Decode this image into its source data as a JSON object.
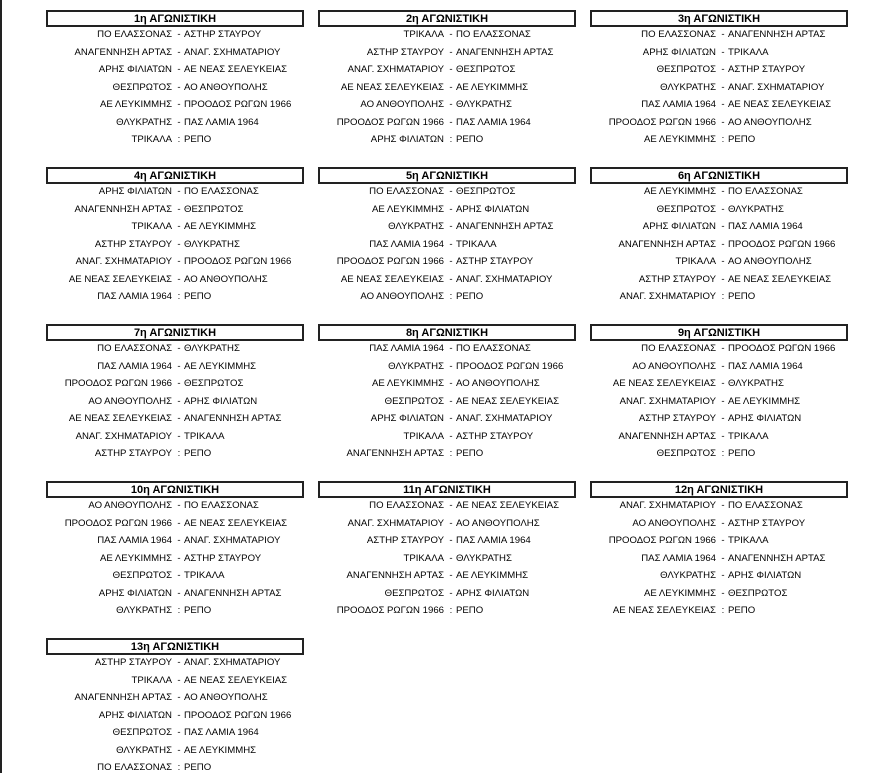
{
  "rounds": [
    {
      "title": "1η ΑΓΩΝΙΣΤΙΚΗ",
      "matches": [
        [
          "ΠΟ ΕΛΑΣΣΟΝΑΣ",
          "-",
          "ΑΣΤΗΡ ΣΤΑΥΡΟΥ"
        ],
        [
          "ΑΝΑΓΕΝΝΗΣΗ ΑΡΤΑΣ",
          "-",
          "ΑΝΑΓ. ΣΧΗΜΑΤΑΡΙΟΥ"
        ],
        [
          "ΑΡΗΣ ΦΙΛΙΑΤΩΝ",
          "-",
          "ΑΕ ΝΕΑΣ ΣΕΛΕΥΚΕΙΑΣ"
        ],
        [
          "ΘΕΣΠΡΩΤΟΣ",
          "-",
          "ΑΟ ΑΝΘΟΥΠΟΛΗΣ"
        ],
        [
          "ΑΕ ΛΕΥΚΙΜΜΗΣ",
          "-",
          "ΠΡΟΟΔΟΣ ΡΩΓΩΝ 1966"
        ],
        [
          "ΘΛΥΚΡΑΤΗΣ",
          "-",
          "ΠΑΣ ΛΑΜΙΑ 1964"
        ],
        [
          "ΤΡΙΚΑΛΑ",
          ":",
          "ΡΕΠΟ"
        ]
      ]
    },
    {
      "title": "2η ΑΓΩΝΙΣΤΙΚΗ",
      "matches": [
        [
          "ΤΡΙΚΑΛΑ",
          "-",
          "ΠΟ ΕΛΑΣΣΟΝΑΣ"
        ],
        [
          "ΑΣΤΗΡ ΣΤΑΥΡΟΥ",
          "-",
          "ΑΝΑΓΕΝΝΗΣΗ ΑΡΤΑΣ"
        ],
        [
          "ΑΝΑΓ. ΣΧΗΜΑΤΑΡΙΟΥ",
          "-",
          "ΘΕΣΠΡΩΤΟΣ"
        ],
        [
          "ΑΕ ΝΕΑΣ ΣΕΛΕΥΚΕΙΑΣ",
          "-",
          "ΑΕ ΛΕΥΚΙΜΜΗΣ"
        ],
        [
          "ΑΟ ΑΝΘΟΥΠΟΛΗΣ",
          "-",
          "ΘΛΥΚΡΑΤΗΣ"
        ],
        [
          "ΠΡΟΟΔΟΣ ΡΩΓΩΝ 1966",
          "-",
          "ΠΑΣ ΛΑΜΙΑ 1964"
        ],
        [
          "ΑΡΗΣ ΦΙΛΙΑΤΩΝ",
          ":",
          "ΡΕΠΟ"
        ]
      ]
    },
    {
      "title": "3η ΑΓΩΝΙΣΤΙΚΗ",
      "matches": [
        [
          "ΠΟ ΕΛΑΣΣΟΝΑΣ",
          "-",
          "ΑΝΑΓΕΝΝΗΣΗ ΑΡΤΑΣ"
        ],
        [
          "ΑΡΗΣ ΦΙΛΙΑΤΩΝ",
          "-",
          "ΤΡΙΚΑΛΑ"
        ],
        [
          "ΘΕΣΠΡΩΤΟΣ",
          "-",
          "ΑΣΤΗΡ ΣΤΑΥΡΟΥ"
        ],
        [
          "ΘΛΥΚΡΑΤΗΣ",
          "-",
          "ΑΝΑΓ. ΣΧΗΜΑΤΑΡΙΟΥ"
        ],
        [
          "ΠΑΣ ΛΑΜΙΑ 1964",
          "-",
          "ΑΕ ΝΕΑΣ ΣΕΛΕΥΚΕΙΑΣ"
        ],
        [
          "ΠΡΟΟΔΟΣ ΡΩΓΩΝ 1966",
          "-",
          "ΑΟ ΑΝΘΟΥΠΟΛΗΣ"
        ],
        [
          "ΑΕ ΛΕΥΚΙΜΜΗΣ",
          ":",
          "ΡΕΠΟ"
        ]
      ]
    },
    {
      "title": "4η ΑΓΩΝΙΣΤΙΚΗ",
      "matches": [
        [
          "ΑΡΗΣ ΦΙΛΙΑΤΩΝ",
          "-",
          "ΠΟ ΕΛΑΣΣΟΝΑΣ"
        ],
        [
          "ΑΝΑΓΕΝΝΗΣΗ ΑΡΤΑΣ",
          "-",
          "ΘΕΣΠΡΩΤΟΣ"
        ],
        [
          "ΤΡΙΚΑΛΑ",
          "-",
          "ΑΕ ΛΕΥΚΙΜΜΗΣ"
        ],
        [
          "ΑΣΤΗΡ ΣΤΑΥΡΟΥ",
          "-",
          "ΘΛΥΚΡΑΤΗΣ"
        ],
        [
          "ΑΝΑΓ. ΣΧΗΜΑΤΑΡΙΟΥ",
          "-",
          "ΠΡΟΟΔΟΣ ΡΩΓΩΝ 1966"
        ],
        [
          "ΑΕ ΝΕΑΣ ΣΕΛΕΥΚΕΙΑΣ",
          "-",
          "ΑΟ ΑΝΘΟΥΠΟΛΗΣ"
        ],
        [
          "ΠΑΣ ΛΑΜΙΑ 1964",
          ":",
          "ΡΕΠΟ"
        ]
      ]
    },
    {
      "title": "5η ΑΓΩΝΙΣΤΙΚΗ",
      "matches": [
        [
          "ΠΟ ΕΛΑΣΣΟΝΑΣ",
          "-",
          "ΘΕΣΠΡΩΤΟΣ"
        ],
        [
          "ΑΕ ΛΕΥΚΙΜΜΗΣ",
          "-",
          "ΑΡΗΣ ΦΙΛΙΑΤΩΝ"
        ],
        [
          "ΘΛΥΚΡΑΤΗΣ",
          "-",
          "ΑΝΑΓΕΝΝΗΣΗ ΑΡΤΑΣ"
        ],
        [
          "ΠΑΣ ΛΑΜΙΑ 1964",
          "-",
          "ΤΡΙΚΑΛΑ"
        ],
        [
          "ΠΡΟΟΔΟΣ ΡΩΓΩΝ 1966",
          "-",
          "ΑΣΤΗΡ ΣΤΑΥΡΟΥ"
        ],
        [
          "ΑΕ ΝΕΑΣ ΣΕΛΕΥΚΕΙΑΣ",
          "-",
          "ΑΝΑΓ. ΣΧΗΜΑΤΑΡΙΟΥ"
        ],
        [
          "ΑΟ ΑΝΘΟΥΠΟΛΗΣ",
          ":",
          "ΡΕΠΟ"
        ]
      ]
    },
    {
      "title": "6η ΑΓΩΝΙΣΤΙΚΗ",
      "matches": [
        [
          "ΑΕ ΛΕΥΚΙΜΜΗΣ",
          "-",
          "ΠΟ ΕΛΑΣΣΟΝΑΣ"
        ],
        [
          "ΘΕΣΠΡΩΤΟΣ",
          "-",
          "ΘΛΥΚΡΑΤΗΣ"
        ],
        [
          "ΑΡΗΣ ΦΙΛΙΑΤΩΝ",
          "-",
          "ΠΑΣ ΛΑΜΙΑ 1964"
        ],
        [
          "ΑΝΑΓΕΝΝΗΣΗ ΑΡΤΑΣ",
          "-",
          "ΠΡΟΟΔΟΣ ΡΩΓΩΝ 1966"
        ],
        [
          "ΤΡΙΚΑΛΑ",
          "-",
          "ΑΟ ΑΝΘΟΥΠΟΛΗΣ"
        ],
        [
          "ΑΣΤΗΡ ΣΤΑΥΡΟΥ",
          "-",
          "ΑΕ ΝΕΑΣ ΣΕΛΕΥΚΕΙΑΣ"
        ],
        [
          "ΑΝΑΓ. ΣΧΗΜΑΤΑΡΙΟΥ",
          ":",
          "ΡΕΠΟ"
        ]
      ]
    },
    {
      "title": "7η ΑΓΩΝΙΣΤΙΚΗ",
      "matches": [
        [
          "ΠΟ ΕΛΑΣΣΟΝΑΣ",
          "-",
          "ΘΛΥΚΡΑΤΗΣ"
        ],
        [
          "ΠΑΣ ΛΑΜΙΑ 1964",
          "-",
          "ΑΕ ΛΕΥΚΙΜΜΗΣ"
        ],
        [
          "ΠΡΟΟΔΟΣ ΡΩΓΩΝ 1966",
          "-",
          "ΘΕΣΠΡΩΤΟΣ"
        ],
        [
          "ΑΟ ΑΝΘΟΥΠΟΛΗΣ",
          "-",
          "ΑΡΗΣ ΦΙΛΙΑΤΩΝ"
        ],
        [
          "ΑΕ ΝΕΑΣ ΣΕΛΕΥΚΕΙΑΣ",
          "-",
          "ΑΝΑΓΕΝΝΗΣΗ ΑΡΤΑΣ"
        ],
        [
          "ΑΝΑΓ. ΣΧΗΜΑΤΑΡΙΟΥ",
          "-",
          "ΤΡΙΚΑΛΑ"
        ],
        [
          "ΑΣΤΗΡ ΣΤΑΥΡΟΥ",
          ":",
          "ΡΕΠΟ"
        ]
      ]
    },
    {
      "title": "8η ΑΓΩΝΙΣΤΙΚΗ",
      "matches": [
        [
          "ΠΑΣ ΛΑΜΙΑ 1964",
          "-",
          "ΠΟ ΕΛΑΣΣΟΝΑΣ"
        ],
        [
          "ΘΛΥΚΡΑΤΗΣ",
          "-",
          "ΠΡΟΟΔΟΣ ΡΩΓΩΝ 1966"
        ],
        [
          "ΑΕ ΛΕΥΚΙΜΜΗΣ",
          "-",
          "ΑΟ ΑΝΘΟΥΠΟΛΗΣ"
        ],
        [
          "ΘΕΣΠΡΩΤΟΣ",
          "-",
          "ΑΕ ΝΕΑΣ ΣΕΛΕΥΚΕΙΑΣ"
        ],
        [
          "ΑΡΗΣ ΦΙΛΙΑΤΩΝ",
          "-",
          "ΑΝΑΓ. ΣΧΗΜΑΤΑΡΙΟΥ"
        ],
        [
          "ΤΡΙΚΑΛΑ",
          "-",
          "ΑΣΤΗΡ ΣΤΑΥΡΟΥ"
        ],
        [
          "ΑΝΑΓΕΝΝΗΣΗ ΑΡΤΑΣ",
          ":",
          "ΡΕΠΟ"
        ]
      ]
    },
    {
      "title": "9η ΑΓΩΝΙΣΤΙΚΗ",
      "matches": [
        [
          "ΠΟ ΕΛΑΣΣΟΝΑΣ",
          "-",
          "ΠΡΟΟΔΟΣ ΡΩΓΩΝ 1966"
        ],
        [
          "ΑΟ ΑΝΘΟΥΠΟΛΗΣ",
          "-",
          "ΠΑΣ ΛΑΜΙΑ 1964"
        ],
        [
          "ΑΕ ΝΕΑΣ ΣΕΛΕΥΚΕΙΑΣ",
          "-",
          "ΘΛΥΚΡΑΤΗΣ"
        ],
        [
          "ΑΝΑΓ. ΣΧΗΜΑΤΑΡΙΟΥ",
          "-",
          "ΑΕ ΛΕΥΚΙΜΜΗΣ"
        ],
        [
          "ΑΣΤΗΡ ΣΤΑΥΡΟΥ",
          "-",
          "ΑΡΗΣ ΦΙΛΙΑΤΩΝ"
        ],
        [
          "ΑΝΑΓΕΝΝΗΣΗ ΑΡΤΑΣ",
          "-",
          "ΤΡΙΚΑΛΑ"
        ],
        [
          "ΘΕΣΠΡΩΤΟΣ",
          ":",
          "ΡΕΠΟ"
        ]
      ]
    },
    {
      "title": "10η ΑΓΩΝΙΣΤΙΚΗ",
      "matches": [
        [
          "ΑΟ ΑΝΘΟΥΠΟΛΗΣ",
          "-",
          "ΠΟ ΕΛΑΣΣΟΝΑΣ"
        ],
        [
          "ΠΡΟΟΔΟΣ ΡΩΓΩΝ 1966",
          "-",
          "ΑΕ ΝΕΑΣ ΣΕΛΕΥΚΕΙΑΣ"
        ],
        [
          "ΠΑΣ ΛΑΜΙΑ 1964",
          "-",
          "ΑΝΑΓ. ΣΧΗΜΑΤΑΡΙΟΥ"
        ],
        [
          "ΑΕ ΛΕΥΚΙΜΜΗΣ",
          "-",
          "ΑΣΤΗΡ ΣΤΑΥΡΟΥ"
        ],
        [
          "ΘΕΣΠΡΩΤΟΣ",
          "-",
          "ΤΡΙΚΑΛΑ"
        ],
        [
          "ΑΡΗΣ ΦΙΛΙΑΤΩΝ",
          "-",
          "ΑΝΑΓΕΝΝΗΣΗ ΑΡΤΑΣ"
        ],
        [
          "ΘΛΥΚΡΑΤΗΣ",
          ":",
          "ΡΕΠΟ"
        ]
      ]
    },
    {
      "title": "11η ΑΓΩΝΙΣΤΙΚΗ",
      "matches": [
        [
          "ΠΟ ΕΛΑΣΣΟΝΑΣ",
          "-",
          "ΑΕ ΝΕΑΣ ΣΕΛΕΥΚΕΙΑΣ"
        ],
        [
          "ΑΝΑΓ. ΣΧΗΜΑΤΑΡΙΟΥ",
          "-",
          "ΑΟ ΑΝΘΟΥΠΟΛΗΣ"
        ],
        [
          "ΑΣΤΗΡ ΣΤΑΥΡΟΥ",
          "-",
          "ΠΑΣ ΛΑΜΙΑ 1964"
        ],
        [
          "ΤΡΙΚΑΛΑ",
          "-",
          "ΘΛΥΚΡΑΤΗΣ"
        ],
        [
          "ΑΝΑΓΕΝΝΗΣΗ ΑΡΤΑΣ",
          "-",
          "ΑΕ ΛΕΥΚΙΜΜΗΣ"
        ],
        [
          "ΘΕΣΠΡΩΤΟΣ",
          "-",
          "ΑΡΗΣ ΦΙΛΙΑΤΩΝ"
        ],
        [
          "ΠΡΟΟΔΟΣ ΡΩΓΩΝ 1966",
          ":",
          "ΡΕΠΟ"
        ]
      ]
    },
    {
      "title": "12η ΑΓΩΝΙΣΤΙΚΗ",
      "matches": [
        [
          "ΑΝΑΓ. ΣΧΗΜΑΤΑΡΙΟΥ",
          "-",
          "ΠΟ ΕΛΑΣΣΟΝΑΣ"
        ],
        [
          "ΑΟ ΑΝΘΟΥΠΟΛΗΣ",
          "-",
          "ΑΣΤΗΡ ΣΤΑΥΡΟΥ"
        ],
        [
          "ΠΡΟΟΔΟΣ ΡΩΓΩΝ 1966",
          "-",
          "ΤΡΙΚΑΛΑ"
        ],
        [
          "ΠΑΣ ΛΑΜΙΑ 1964",
          "-",
          "ΑΝΑΓΕΝΝΗΣΗ ΑΡΤΑΣ"
        ],
        [
          "ΘΛΥΚΡΑΤΗΣ",
          "-",
          "ΑΡΗΣ ΦΙΛΙΑΤΩΝ"
        ],
        [
          "ΑΕ ΛΕΥΚΙΜΜΗΣ",
          "-",
          "ΘΕΣΠΡΩΤΟΣ"
        ],
        [
          "ΑΕ ΝΕΑΣ ΣΕΛΕΥΚΕΙΑΣ",
          ":",
          "ΡΕΠΟ"
        ]
      ]
    },
    {
      "title": "13η ΑΓΩΝΙΣΤΙΚΗ",
      "matches": [
        [
          "ΑΣΤΗΡ ΣΤΑΥΡΟΥ",
          "-",
          "ΑΝΑΓ. ΣΧΗΜΑΤΑΡΙΟΥ"
        ],
        [
          "ΤΡΙΚΑΛΑ",
          "-",
          "ΑΕ ΝΕΑΣ ΣΕΛΕΥΚΕΙΑΣ"
        ],
        [
          "ΑΝΑΓΕΝΝΗΣΗ ΑΡΤΑΣ",
          "-",
          "ΑΟ ΑΝΘΟΥΠΟΛΗΣ"
        ],
        [
          "ΑΡΗΣ ΦΙΛΙΑΤΩΝ",
          "-",
          "ΠΡΟΟΔΟΣ ΡΩΓΩΝ 1966"
        ],
        [
          "ΘΕΣΠΡΩΤΟΣ",
          "-",
          "ΠΑΣ ΛΑΜΙΑ 1964"
        ],
        [
          "ΘΛΥΚΡΑΤΗΣ",
          "-",
          "ΑΕ ΛΕΥΚΙΜΜΗΣ"
        ],
        [
          "ΠΟ ΕΛΑΣΣΟΝΑΣ",
          ":",
          "ΡΕΠΟ"
        ]
      ]
    }
  ]
}
